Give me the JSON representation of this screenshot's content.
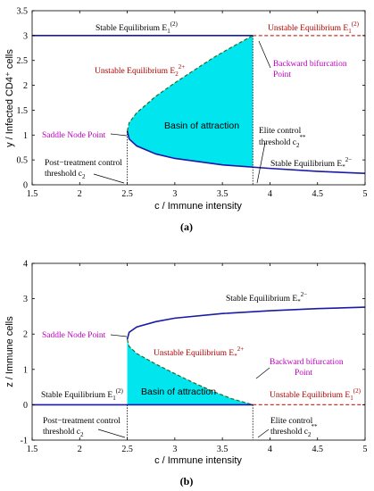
{
  "chart_data": [
    {
      "type": "line",
      "panel_label": "(a)",
      "xlabel": "c / Immune intensity",
      "ylabel": "y / Infected CD4⁺ cells",
      "xlim": [
        1.5,
        5
      ],
      "ylim": [
        0,
        3.5
      ],
      "xticks": [
        "1.5",
        "2",
        "2.5",
        "3",
        "3.5",
        "4",
        "4.5",
        "5"
      ],
      "yticks": [
        "0",
        "0.5",
        "1",
        "1.5",
        "2",
        "2.5",
        "3",
        "3.5"
      ],
      "series": [
        {
          "name": "Stable Equilibrium E₁⁽²⁾",
          "style": "solid",
          "color": "#1a1aa6",
          "x": [
            1.5,
            3.82
          ],
          "y": [
            3.0,
            3.0
          ]
        },
        {
          "name": "Unstable Equilibrium E₁⁽²⁾",
          "style": "dashed",
          "color": "#c0392b",
          "x": [
            3.82,
            5.0
          ],
          "y": [
            3.0,
            3.0
          ]
        },
        {
          "name": "Stable Equilibrium E*²⁻",
          "style": "solid",
          "color": "#1a1aa6",
          "x": [
            2.5,
            2.52,
            2.6,
            2.8,
            3.0,
            3.5,
            4.0,
            4.5,
            5.0
          ],
          "y": [
            1.08,
            0.92,
            0.78,
            0.62,
            0.53,
            0.4,
            0.33,
            0.27,
            0.23
          ]
        },
        {
          "name": "Unstable Equilibrium E₂²⁺",
          "style": "dashed",
          "color": "#2e6b2e",
          "x": [
            2.5,
            2.52,
            2.6,
            2.8,
            3.0,
            3.2,
            3.4,
            3.6,
            3.82
          ],
          "y": [
            1.08,
            1.25,
            1.45,
            1.78,
            2.05,
            2.3,
            2.55,
            2.77,
            3.0
          ]
        }
      ],
      "basin_label": "Basin of attraction",
      "annotations": {
        "saddle_node": "Saddle Node Point",
        "backward_1": "Backward bifurcation",
        "backward_2": "Point",
        "unstable_e2": "Unstable Equilibrium E",
        "unstable_e2_sup": "2+",
        "unstable_e2_sub": "2",
        "stable_e1": "Stable Equilibrium E",
        "stable_e1_sup": "(2)",
        "stable_e1_sub": "1",
        "unstable_e1": "Unstable Equilibrium E",
        "unstable_e1_sup": "(2)",
        "unstable_e1_sub": "1",
        "stable_e2": "Stable Equilibrium E",
        "stable_e2_sup": "2−",
        "stable_e2_sub": "*",
        "elite_1": "Elite control",
        "elite_2": "threshold c",
        "elite_sup": "**",
        "elite_sub": "2",
        "post_1": "Post−treatment control",
        "post_2": "threshold c",
        "post_sub": "2"
      },
      "markers": {
        "post_treatment_threshold": 2.5,
        "elite_threshold": 3.82
      }
    },
    {
      "type": "line",
      "panel_label": "(b)",
      "xlabel": "c / Immune intensity",
      "ylabel": "z / Immune cells",
      "xlim": [
        1.5,
        5
      ],
      "ylim": [
        -1,
        4
      ],
      "xticks": [
        "1.5",
        "2",
        "2.5",
        "3",
        "3.5",
        "4",
        "4.5",
        "5"
      ],
      "yticks": [
        "-1",
        "0",
        "1",
        "2",
        "3",
        "4"
      ],
      "series": [
        {
          "name": "Stable Equilibrium E₁⁽²⁾",
          "style": "solid",
          "color": "#1a1aa6",
          "x": [
            1.5,
            3.82
          ],
          "y": [
            0,
            0
          ]
        },
        {
          "name": "Unstable Equilibrium E₁⁽²⁾",
          "style": "dashed",
          "color": "#c0392b",
          "x": [
            3.82,
            5.0
          ],
          "y": [
            0,
            0
          ]
        },
        {
          "name": "Stable Equilibrium E*²⁻",
          "style": "solid",
          "color": "#1a1aa6",
          "x": [
            2.5,
            2.52,
            2.6,
            2.8,
            3.0,
            3.5,
            4.0,
            4.5,
            5.0
          ],
          "y": [
            1.85,
            2.05,
            2.2,
            2.35,
            2.45,
            2.58,
            2.66,
            2.72,
            2.76
          ]
        },
        {
          "name": "Unstable Equilibrium E*²⁺",
          "style": "dashed",
          "color": "#2e6b2e",
          "x": [
            2.5,
            2.52,
            2.6,
            2.8,
            3.0,
            3.2,
            3.4,
            3.6,
            3.82
          ],
          "y": [
            1.85,
            1.65,
            1.45,
            1.15,
            0.88,
            0.62,
            0.38,
            0.17,
            0.0
          ]
        }
      ],
      "basin_label": "Basin of attraction",
      "annotations": {
        "saddle_node": "Saddle Node Point",
        "backward_1": "Backward bifurcation",
        "backward_2": "Point",
        "unstable_e2": "Unstable Equilibrium E",
        "unstable_e2_sup": "2+",
        "unstable_e2_sub": "*",
        "stable_e1": "Stable Equilibrium E",
        "stable_e1_sup": "(2)",
        "stable_e1_sub": "1",
        "unstable_e1": "Unstable Equilibrium E",
        "unstable_e1_sup": "(2)",
        "unstable_e1_sub": "1",
        "stable_e2": "Stable Equilibrium E",
        "stable_e2_sup": "2−",
        "stable_e2_sub": "*",
        "elite_1": "Elite control",
        "elite_2": "threshold c",
        "elite_sup": "**",
        "elite_sub": "2",
        "post_1": "Post−treatment control",
        "post_2": "threshold c",
        "post_sub": "2"
      },
      "markers": {
        "post_treatment_threshold": 2.5,
        "elite_threshold": 3.82
      }
    }
  ],
  "colors": {
    "stable": "#1a1aa6",
    "unstable_red": "#c0392b",
    "unstable_green": "#2e6b2e",
    "basin_fill": "#00e5ee",
    "annotation_magenta": "#c000c0"
  }
}
